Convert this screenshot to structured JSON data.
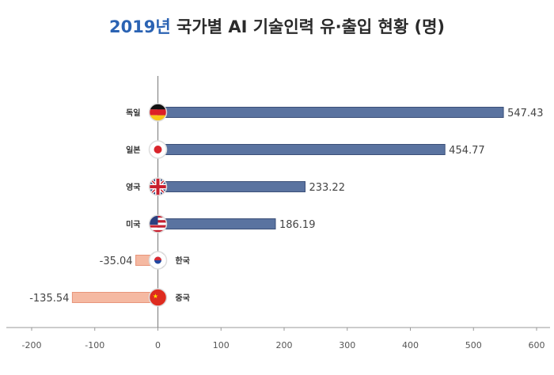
{
  "chart_data": {
    "type": "bar",
    "orientation": "horizontal",
    "title_year": "2019년",
    "title_rest": " 국가별 AI 기술인력 유·출입 현황 (명)",
    "categories": [
      "독일",
      "일본",
      "영국",
      "미국",
      "한국",
      "중국"
    ],
    "values": [
      547.43,
      454.77,
      233.22,
      186.19,
      -35.04,
      -135.54
    ],
    "value_labels": [
      "547.43",
      "454.77",
      "233.22",
      "186.19",
      "-35.04",
      "-135.54"
    ],
    "flag_icons": [
      "germany-flag-icon",
      "japan-flag-icon",
      "uk-flag-icon",
      "usa-flag-icon",
      "korea-flag-icon",
      "china-flag-icon"
    ],
    "xlim": [
      -200,
      600
    ],
    "xticks": [
      -200,
      -100,
      0,
      100,
      200,
      300,
      400,
      500,
      600
    ],
    "xtick_labels": [
      "-200",
      "-100",
      "0",
      "100",
      "200",
      "300",
      "400",
      "500",
      "600"
    ],
    "grid": false,
    "colors": {
      "positive": "#5a73a0",
      "positive_edge": "#3b4f78",
      "negative": "#f5b9a2",
      "negative_edge": "#e8957a",
      "title_accent": "#2b63b3",
      "axis": "#999999"
    }
  }
}
